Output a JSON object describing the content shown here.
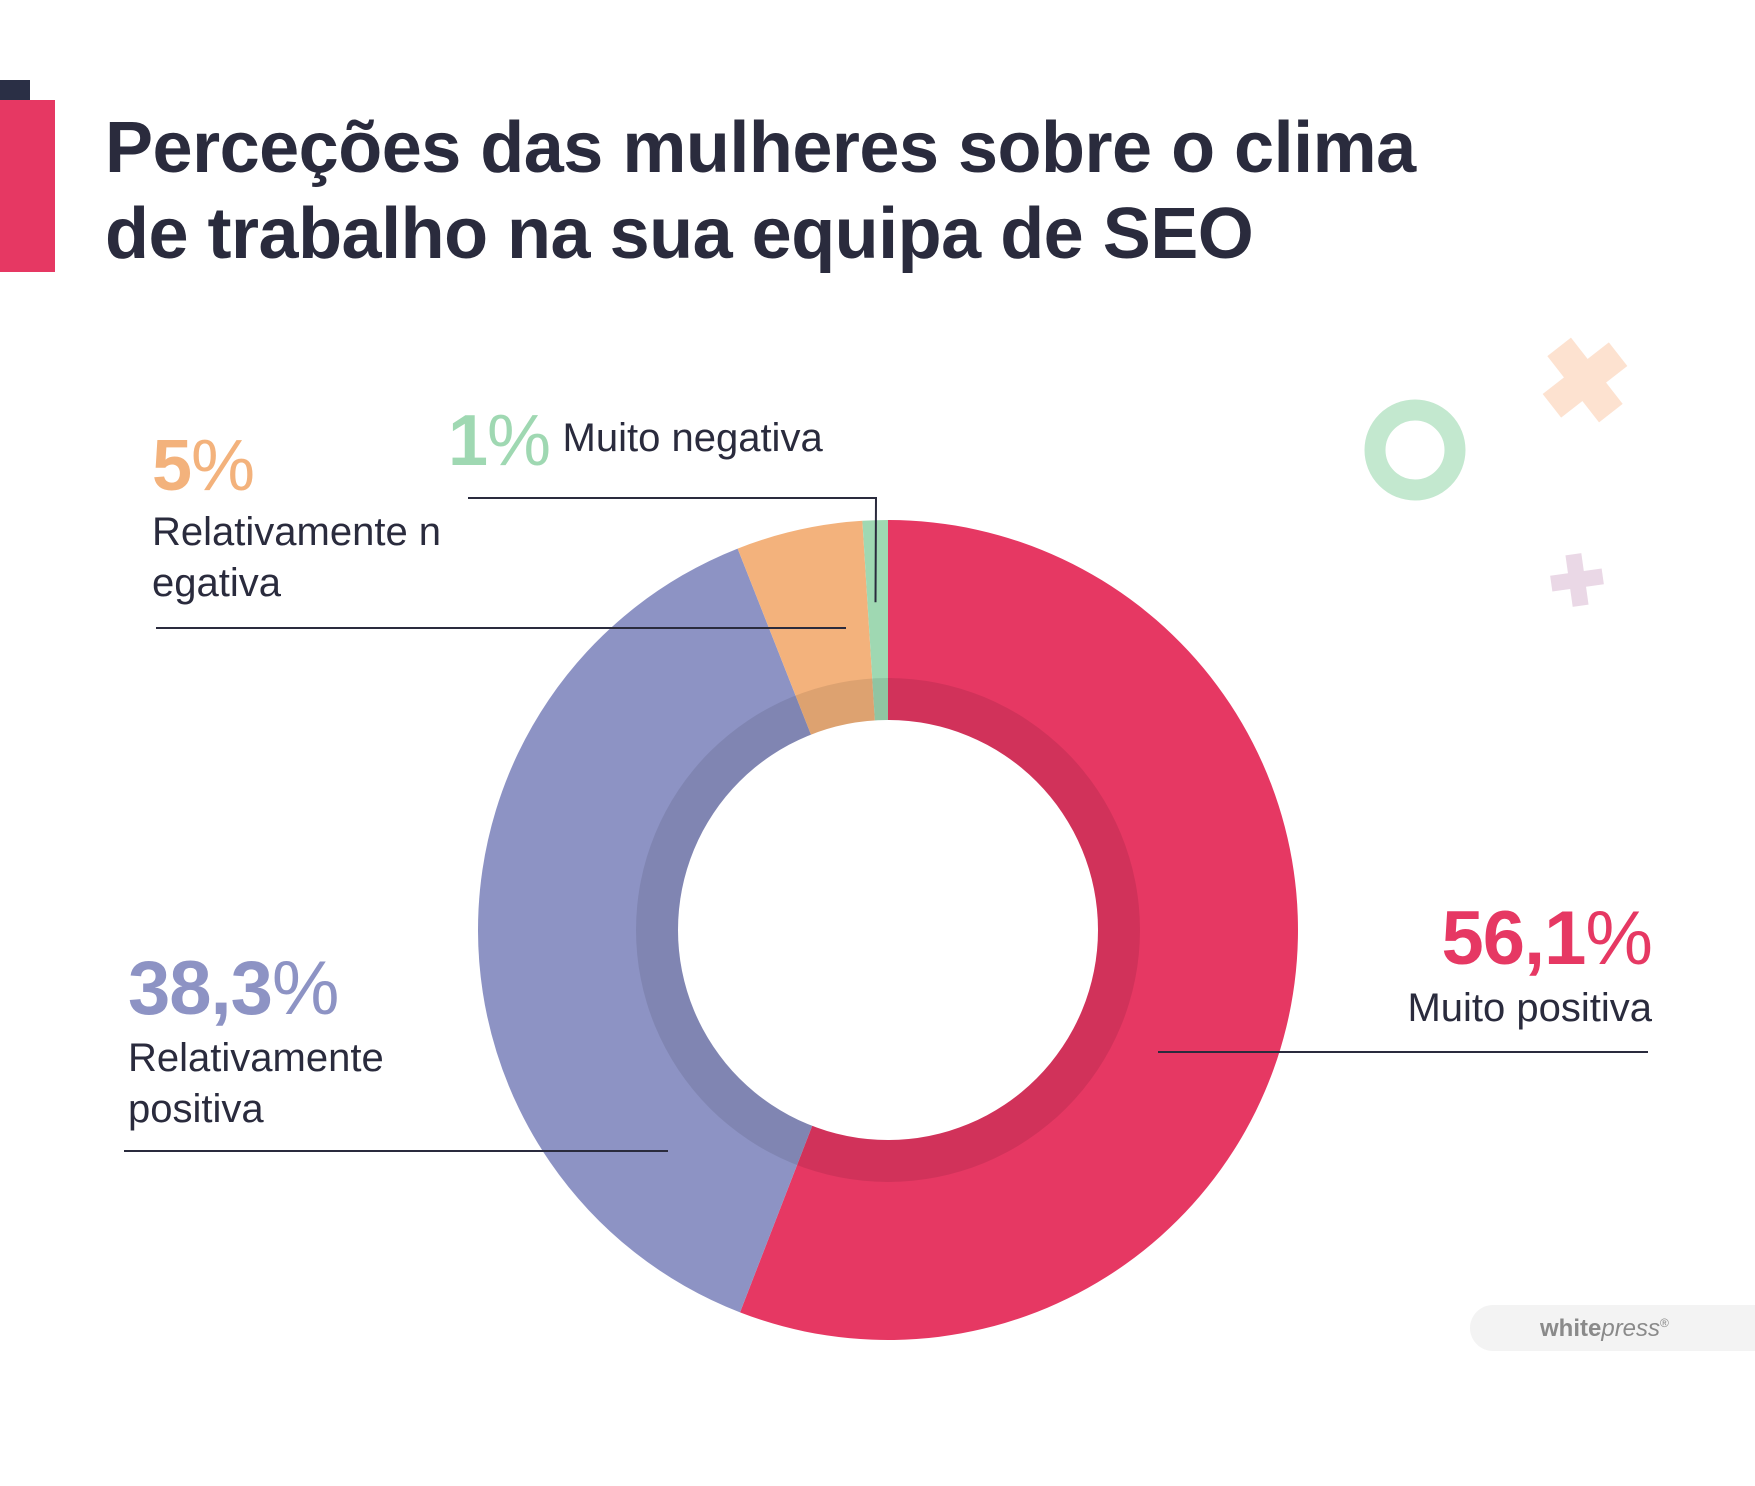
{
  "title": {
    "line1": "Perceções das mulheres sobre o clima",
    "line2": "de trabalho na sua equipa de SEO"
  },
  "colors": {
    "title": "#2a2b3d",
    "accent": "#e63863",
    "background": "#ffffff"
  },
  "watermark": {
    "bold": "white",
    "italic": "press",
    "mark": "®"
  },
  "decorations": [
    "orange-cross-icon",
    "green-ring-icon",
    "lilac-plus-icon"
  ],
  "chart_data": {
    "type": "pie",
    "variant": "donut",
    "slices": [
      {
        "label": "Muito positiva",
        "value": 56.1,
        "display": "56,1",
        "color": "#e63863"
      },
      {
        "label": "Relativamente positiva",
        "value": 38.3,
        "display": "38,3",
        "color": "#8d93c4"
      },
      {
        "label": "Relativamente negativa",
        "value": 5,
        "display": "5",
        "color": "#f3b27c"
      },
      {
        "label": "Muito negativa",
        "value": 1,
        "display": "1",
        "color": "#9fd8b2"
      }
    ]
  }
}
